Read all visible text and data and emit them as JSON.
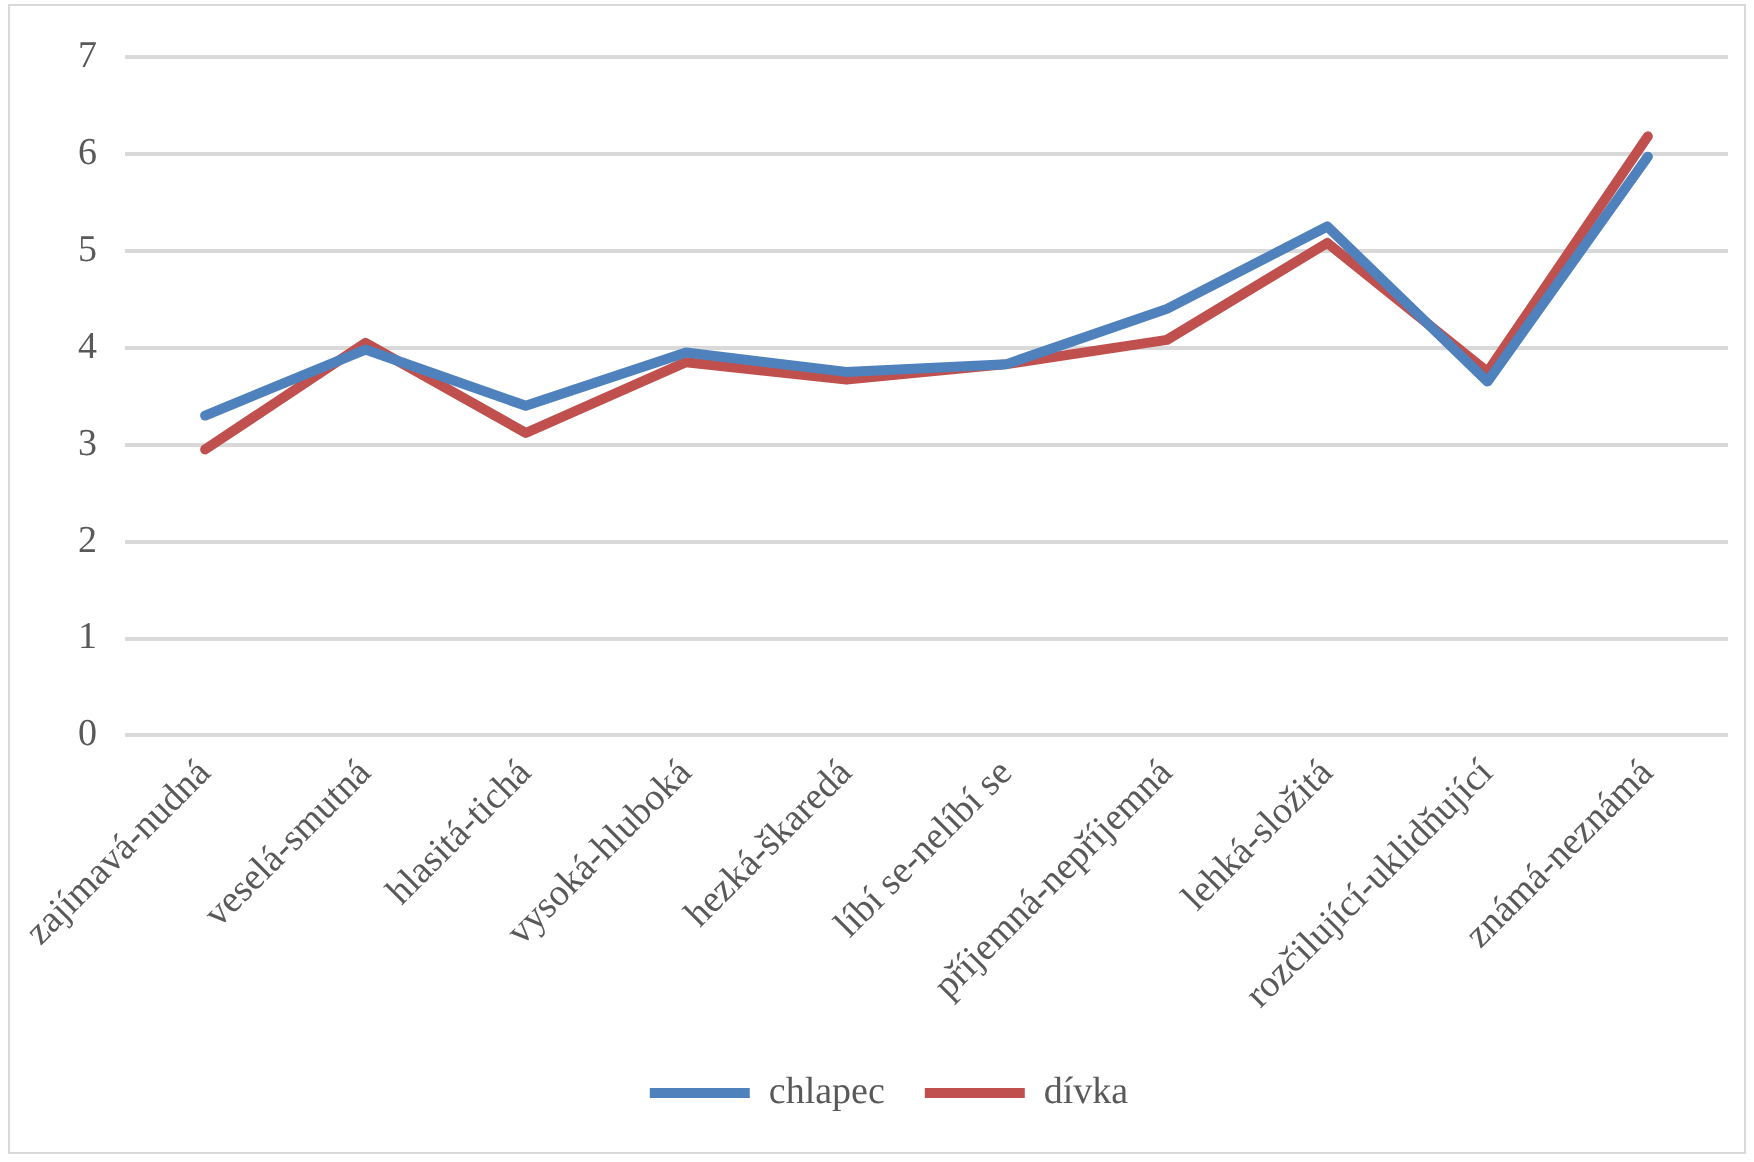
{
  "chart_data": {
    "type": "line",
    "categories": [
      "zajímavá-nudná",
      "veselá-smutná",
      "hlasitá-tichá",
      "vysoká-hluboká",
      "hezká-škaredá",
      "líbí se-nelíbí se",
      "příjemná-nepříjemná",
      "lehká-složitá",
      "rozčilující-uklidňující",
      "známá-neznámá"
    ],
    "series": [
      {
        "name": "chlapec",
        "color": "#4f81bd",
        "values": [
          3.3,
          3.98,
          3.4,
          3.95,
          3.75,
          3.83,
          4.4,
          5.25,
          3.65,
          5.97
        ]
      },
      {
        "name": "dívka",
        "color": "#c0504d",
        "values": [
          2.95,
          4.05,
          3.12,
          3.85,
          3.67,
          3.83,
          4.08,
          5.08,
          3.75,
          6.18
        ]
      }
    ],
    "ylim": [
      0,
      7
    ],
    "yticks": [
      0,
      1,
      2,
      3,
      4,
      5,
      6,
      7
    ],
    "grid": "y",
    "legend": "bottom",
    "marker": "none",
    "line_style": "solid"
  }
}
